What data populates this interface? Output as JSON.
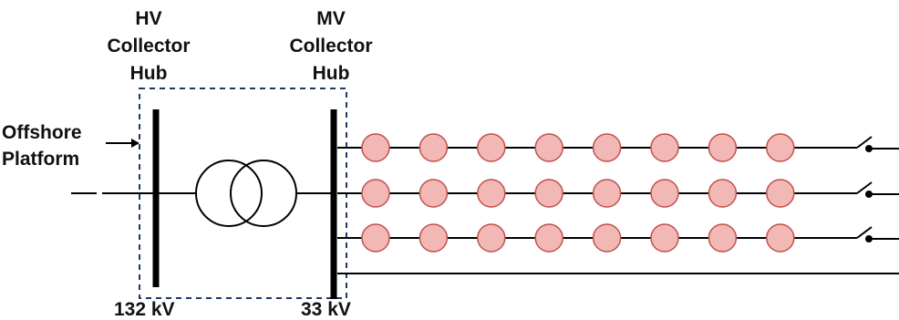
{
  "labels": {
    "hv_hub": [
      "HV",
      "Collector",
      "Hub"
    ],
    "mv_hub": [
      "MV",
      "Collector",
      "Hub"
    ],
    "platform": [
      "Offshore",
      "Platform"
    ],
    "hv_voltage": "132 kV",
    "mv_voltage": "33 kV"
  },
  "feeders": {
    "rows": 3,
    "turbines_per_row": 8,
    "spare_feeder": true
  },
  "colors": {
    "line": "#000000",
    "turbine_fill": "#f2b8b5",
    "turbine_stroke": "#c0504d",
    "platform_box": "#1f3864"
  }
}
